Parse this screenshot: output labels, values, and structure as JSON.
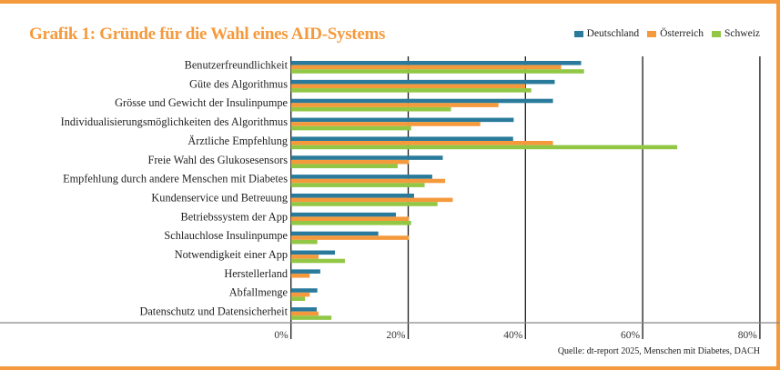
{
  "chart_data": {
    "type": "bar",
    "orientation": "horizontal",
    "title": "Grafik 1: Gründe für die Wahl eines AID-Systems",
    "xlabel": "",
    "ylabel": "",
    "xlim": [
      0,
      80
    ],
    "xticks": [
      "0%",
      "20%",
      "40%",
      "60%",
      "80%"
    ],
    "grid": true,
    "legend_position": "top-right",
    "categories": [
      "Benutzerfreundlichkeit",
      "Güte des Algorithmus",
      "Grösse und Gewicht der Insulinpumpe",
      "Individualisierungsmöglichkeiten des Algorithmus",
      "Ärztliche Empfehlung",
      "Freie Wahl des Glukosesensors",
      "Empfehlung durch andere Menschen mit Diabetes",
      "Kundenservice und Betreuung",
      "Betriebssystem der App",
      "Schlauchlose Insulinpumpe",
      "Notwendigkeit einer App",
      "Herstellerland",
      "Abfallmenge",
      "Datenschutz und Datensicherheit"
    ],
    "series": [
      {
        "name": "Deutschland",
        "color": "#2a7b9b",
        "values": [
          49.5,
          45,
          44.7,
          38,
          37.9,
          25.9,
          24.1,
          21,
          17.9,
          14.9,
          7.5,
          5,
          4.5,
          4.4
        ]
      },
      {
        "name": "Österreich",
        "color": "#f59a3c",
        "values": [
          46.1,
          40,
          35.4,
          32.3,
          44.7,
          20.1,
          26.3,
          27.6,
          20.1,
          20.1,
          4.7,
          3.2,
          3.2,
          4.7
        ]
      },
      {
        "name": "Schweiz",
        "color": "#92c746",
        "values": [
          50,
          41,
          27.3,
          20.5,
          65.9,
          18.2,
          22.8,
          25,
          20.5,
          4.5,
          9.2,
          0,
          2.4,
          6.9
        ]
      }
    ],
    "source": "Quelle: dt-report 2025, Menschen mit Diabetes, DACH"
  }
}
